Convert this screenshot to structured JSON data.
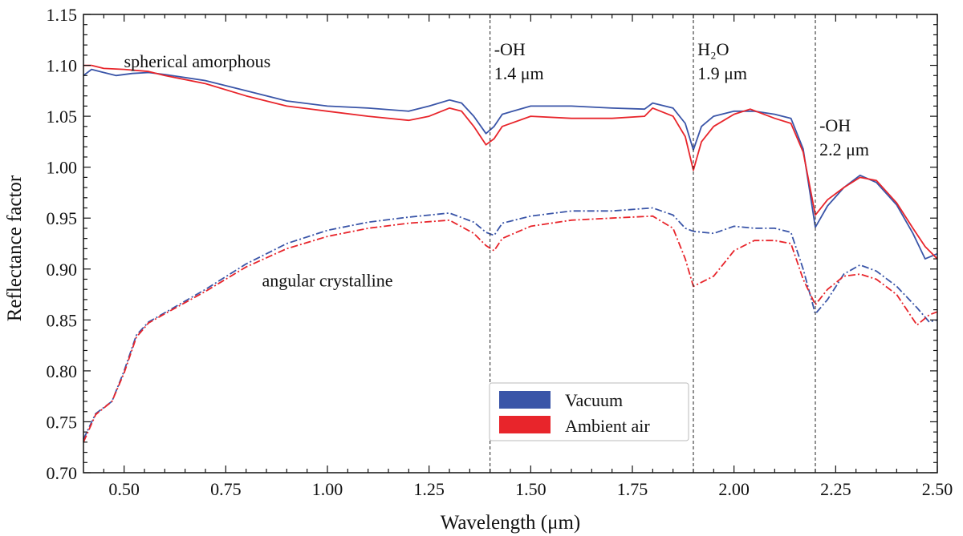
{
  "chart_data": {
    "type": "line",
    "xlabel": "Wavelength (μm)",
    "ylabel": "Reflectance factor",
    "xlim": [
      0.4,
      2.5
    ],
    "ylim": [
      0.7,
      1.15
    ],
    "xticks": [
      0.5,
      0.75,
      1.0,
      1.25,
      1.5,
      1.75,
      2.0,
      2.25,
      2.5
    ],
    "xtick_labels": [
      "0.50",
      "0.75",
      "1.00",
      "1.25",
      "1.50",
      "1.75",
      "2.00",
      "2.25",
      "2.50"
    ],
    "yticks": [
      0.7,
      0.75,
      0.8,
      0.85,
      0.9,
      0.95,
      1.0,
      1.05,
      1.1,
      1.15
    ],
    "ytick_labels": [
      "0.70",
      "0.75",
      "0.80",
      "0.85",
      "0.90",
      "0.95",
      "1.00",
      "1.05",
      "1.10",
      "1.15"
    ],
    "vlines": [
      1.4,
      1.9,
      2.2
    ],
    "annotations": [
      {
        "id": "oh14",
        "lines": [
          "-OH",
          "1.4 μm"
        ],
        "x": 1.41,
        "y": 1.11
      },
      {
        "id": "h2o19",
        "lines": [
          "H₂O",
          "1.9 μm"
        ],
        "x": 1.91,
        "y": 1.11
      },
      {
        "id": "oh22",
        "lines": [
          "-OH",
          "2.2 μm"
        ],
        "x": 2.21,
        "y": 1.035
      }
    ],
    "group_labels": [
      {
        "id": "spherical",
        "text": "spherical amorphous",
        "x": 0.68,
        "y": 1.098
      },
      {
        "id": "angular",
        "text": "angular crystalline",
        "x": 1.0,
        "y": 0.883
      }
    ],
    "legend": {
      "location": "lower-center",
      "entries": [
        {
          "label": "Vacuum",
          "color": "#3a55a8"
        },
        {
          "label": "Ambient air",
          "color": "#e8252b"
        }
      ]
    },
    "series": [
      {
        "name": "spherical amorphous - Vacuum",
        "color": "#3a55a8",
        "style": "solid",
        "points": [
          [
            0.4,
            1.09
          ],
          [
            0.42,
            1.096
          ],
          [
            0.45,
            1.093
          ],
          [
            0.48,
            1.09
          ],
          [
            0.52,
            1.092
          ],
          [
            0.56,
            1.093
          ],
          [
            0.6,
            1.091
          ],
          [
            0.7,
            1.085
          ],
          [
            0.8,
            1.075
          ],
          [
            0.9,
            1.065
          ],
          [
            1.0,
            1.06
          ],
          [
            1.1,
            1.058
          ],
          [
            1.2,
            1.055
          ],
          [
            1.25,
            1.06
          ],
          [
            1.3,
            1.066
          ],
          [
            1.33,
            1.063
          ],
          [
            1.36,
            1.05
          ],
          [
            1.39,
            1.033
          ],
          [
            1.41,
            1.04
          ],
          [
            1.43,
            1.052
          ],
          [
            1.5,
            1.06
          ],
          [
            1.6,
            1.06
          ],
          [
            1.7,
            1.058
          ],
          [
            1.78,
            1.057
          ],
          [
            1.8,
            1.063
          ],
          [
            1.85,
            1.058
          ],
          [
            1.88,
            1.043
          ],
          [
            1.9,
            1.017
          ],
          [
            1.92,
            1.04
          ],
          [
            1.95,
            1.05
          ],
          [
            2.0,
            1.055
          ],
          [
            2.05,
            1.055
          ],
          [
            2.1,
            1.052
          ],
          [
            2.14,
            1.048
          ],
          [
            2.17,
            1.018
          ],
          [
            2.2,
            0.941
          ],
          [
            2.23,
            0.962
          ],
          [
            2.27,
            0.98
          ],
          [
            2.31,
            0.992
          ],
          [
            2.35,
            0.985
          ],
          [
            2.4,
            0.963
          ],
          [
            2.44,
            0.935
          ],
          [
            2.47,
            0.91
          ],
          [
            2.5,
            0.915
          ]
        ]
      },
      {
        "name": "spherical amorphous - Ambient air",
        "color": "#e8252b",
        "style": "solid",
        "points": [
          [
            0.4,
            1.1
          ],
          [
            0.42,
            1.1
          ],
          [
            0.45,
            1.097
          ],
          [
            0.5,
            1.096
          ],
          [
            0.56,
            1.094
          ],
          [
            0.6,
            1.09
          ],
          [
            0.7,
            1.082
          ],
          [
            0.8,
            1.07
          ],
          [
            0.9,
            1.06
          ],
          [
            1.0,
            1.055
          ],
          [
            1.1,
            1.05
          ],
          [
            1.2,
            1.046
          ],
          [
            1.25,
            1.05
          ],
          [
            1.3,
            1.058
          ],
          [
            1.33,
            1.055
          ],
          [
            1.36,
            1.04
          ],
          [
            1.39,
            1.022
          ],
          [
            1.41,
            1.028
          ],
          [
            1.43,
            1.04
          ],
          [
            1.5,
            1.05
          ],
          [
            1.6,
            1.048
          ],
          [
            1.7,
            1.048
          ],
          [
            1.78,
            1.05
          ],
          [
            1.8,
            1.058
          ],
          [
            1.85,
            1.05
          ],
          [
            1.88,
            1.03
          ],
          [
            1.9,
            0.997
          ],
          [
            1.92,
            1.025
          ],
          [
            1.95,
            1.04
          ],
          [
            2.0,
            1.052
          ],
          [
            2.04,
            1.057
          ],
          [
            2.1,
            1.048
          ],
          [
            2.14,
            1.043
          ],
          [
            2.17,
            1.015
          ],
          [
            2.2,
            0.953
          ],
          [
            2.23,
            0.968
          ],
          [
            2.27,
            0.98
          ],
          [
            2.31,
            0.99
          ],
          [
            2.35,
            0.987
          ],
          [
            2.4,
            0.965
          ],
          [
            2.44,
            0.94
          ],
          [
            2.47,
            0.922
          ],
          [
            2.5,
            0.91
          ]
        ]
      },
      {
        "name": "angular crystalline - Vacuum",
        "color": "#3a55a8",
        "style": "dashdot",
        "points": [
          [
            0.4,
            0.733
          ],
          [
            0.43,
            0.758
          ],
          [
            0.47,
            0.77
          ],
          [
            0.5,
            0.8
          ],
          [
            0.53,
            0.835
          ],
          [
            0.56,
            0.848
          ],
          [
            0.6,
            0.857
          ],
          [
            0.7,
            0.88
          ],
          [
            0.8,
            0.905
          ],
          [
            0.9,
            0.925
          ],
          [
            1.0,
            0.938
          ],
          [
            1.1,
            0.946
          ],
          [
            1.2,
            0.951
          ],
          [
            1.3,
            0.955
          ],
          [
            1.36,
            0.946
          ],
          [
            1.39,
            0.936
          ],
          [
            1.41,
            0.933
          ],
          [
            1.43,
            0.945
          ],
          [
            1.5,
            0.952
          ],
          [
            1.6,
            0.957
          ],
          [
            1.7,
            0.957
          ],
          [
            1.8,
            0.96
          ],
          [
            1.85,
            0.953
          ],
          [
            1.88,
            0.94
          ],
          [
            1.9,
            0.937
          ],
          [
            1.95,
            0.935
          ],
          [
            2.0,
            0.942
          ],
          [
            2.05,
            0.94
          ],
          [
            2.1,
            0.94
          ],
          [
            2.14,
            0.936
          ],
          [
            2.17,
            0.9
          ],
          [
            2.2,
            0.856
          ],
          [
            2.23,
            0.87
          ],
          [
            2.27,
            0.895
          ],
          [
            2.31,
            0.904
          ],
          [
            2.35,
            0.898
          ],
          [
            2.4,
            0.883
          ],
          [
            2.45,
            0.862
          ],
          [
            2.48,
            0.848
          ],
          [
            2.5,
            0.85
          ]
        ]
      },
      {
        "name": "angular crystalline - Ambient air",
        "color": "#e8252b",
        "style": "dashdot",
        "points": [
          [
            0.4,
            0.73
          ],
          [
            0.43,
            0.757
          ],
          [
            0.47,
            0.77
          ],
          [
            0.5,
            0.798
          ],
          [
            0.53,
            0.833
          ],
          [
            0.56,
            0.847
          ],
          [
            0.6,
            0.856
          ],
          [
            0.7,
            0.878
          ],
          [
            0.8,
            0.902
          ],
          [
            0.9,
            0.92
          ],
          [
            1.0,
            0.932
          ],
          [
            1.1,
            0.94
          ],
          [
            1.2,
            0.945
          ],
          [
            1.3,
            0.948
          ],
          [
            1.36,
            0.935
          ],
          [
            1.39,
            0.923
          ],
          [
            1.41,
            0.918
          ],
          [
            1.43,
            0.93
          ],
          [
            1.5,
            0.942
          ],
          [
            1.6,
            0.948
          ],
          [
            1.7,
            0.95
          ],
          [
            1.8,
            0.952
          ],
          [
            1.85,
            0.94
          ],
          [
            1.88,
            0.91
          ],
          [
            1.9,
            0.883
          ],
          [
            1.95,
            0.893
          ],
          [
            2.0,
            0.918
          ],
          [
            2.05,
            0.928
          ],
          [
            2.1,
            0.928
          ],
          [
            2.14,
            0.925
          ],
          [
            2.17,
            0.89
          ],
          [
            2.2,
            0.865
          ],
          [
            2.23,
            0.88
          ],
          [
            2.27,
            0.893
          ],
          [
            2.31,
            0.895
          ],
          [
            2.35,
            0.89
          ],
          [
            2.4,
            0.875
          ],
          [
            2.45,
            0.845
          ],
          [
            2.48,
            0.855
          ],
          [
            2.5,
            0.858
          ]
        ]
      }
    ]
  }
}
